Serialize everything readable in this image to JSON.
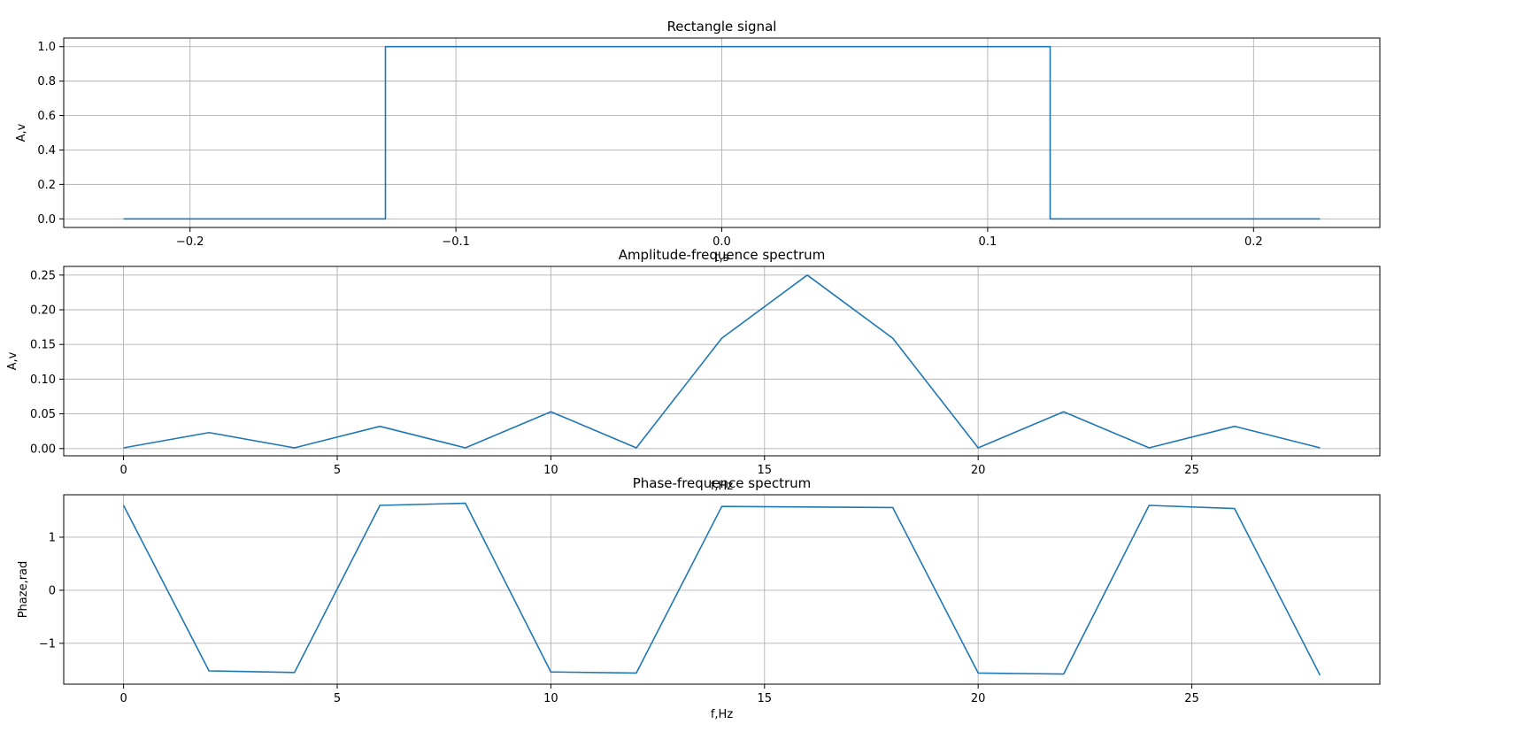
{
  "figure": {
    "background": "#ffffff",
    "line_color": "#1f77b4",
    "grid_color": "#b0b0b0"
  },
  "chart_data": [
    {
      "type": "line",
      "title": "Rectangle signal",
      "xlabel": "t,s",
      "ylabel": "A,v",
      "xlim": [
        -0.2475,
        0.2475
      ],
      "ylim": [
        -0.05,
        1.05
      ],
      "grid": true,
      "xticks": [
        -0.2,
        -0.1,
        0.0,
        0.1,
        0.2
      ],
      "xtick_labels": [
        "−0.2",
        "−0.1",
        "0.0",
        "0.1",
        "0.2"
      ],
      "yticks": [
        0.0,
        0.2,
        0.4,
        0.6,
        0.8,
        1.0
      ],
      "ytick_labels": [
        "0.0",
        "0.2",
        "0.4",
        "0.6",
        "0.8",
        "1.0"
      ],
      "series": [
        {
          "x": [
            -0.225,
            -0.1265,
            -0.1265,
            0.1235,
            0.1235,
            0.225
          ],
          "y": [
            0,
            0,
            1,
            1,
            0,
            0
          ]
        }
      ]
    },
    {
      "type": "line",
      "title": "Amplitude-frequence spectrum",
      "xlabel": "f,Hz",
      "ylabel": "A,v",
      "xlim": [
        -1.4,
        29.4
      ],
      "ylim": [
        -0.0105,
        0.2625
      ],
      "grid": true,
      "xticks": [
        0,
        5,
        10,
        15,
        20,
        25
      ],
      "xtick_labels": [
        "0",
        "5",
        "10",
        "15",
        "20",
        "25"
      ],
      "yticks": [
        0.0,
        0.05,
        0.1,
        0.15,
        0.2,
        0.25
      ],
      "ytick_labels": [
        "0.00",
        "0.05",
        "0.10",
        "0.15",
        "0.20",
        "0.25"
      ],
      "series": [
        {
          "x": [
            0,
            2,
            4,
            6,
            8,
            10,
            12,
            14,
            16,
            18,
            20,
            22,
            24,
            26,
            28
          ],
          "y": [
            0.001,
            0.023,
            0.001,
            0.032,
            0.001,
            0.053,
            0.001,
            0.159,
            0.25,
            0.159,
            0.001,
            0.053,
            0.001,
            0.032,
            0.001
          ]
        }
      ]
    },
    {
      "type": "line",
      "title": "Phase-frequence spectrum",
      "xlabel": "f,Hz",
      "ylabel": "Phaze,rad",
      "xlim": [
        -1.4,
        29.4
      ],
      "ylim": [
        -1.77,
        1.8
      ],
      "grid": true,
      "xticks": [
        0,
        5,
        10,
        15,
        20,
        25
      ],
      "xtick_labels": [
        "0",
        "5",
        "10",
        "15",
        "20",
        "25"
      ],
      "yticks": [
        -1,
        0,
        1
      ],
      "ytick_labels": [
        "−1",
        "0",
        "1"
      ],
      "series": [
        {
          "x": [
            0,
            2,
            4,
            6,
            8,
            10,
            12,
            14,
            16,
            18,
            20,
            22,
            24,
            26,
            28
          ],
          "y": [
            1.6,
            -1.52,
            -1.55,
            1.6,
            1.64,
            -1.54,
            -1.56,
            1.58,
            1.57,
            1.56,
            -1.56,
            -1.58,
            1.6,
            1.54,
            -1.6
          ]
        }
      ]
    }
  ]
}
